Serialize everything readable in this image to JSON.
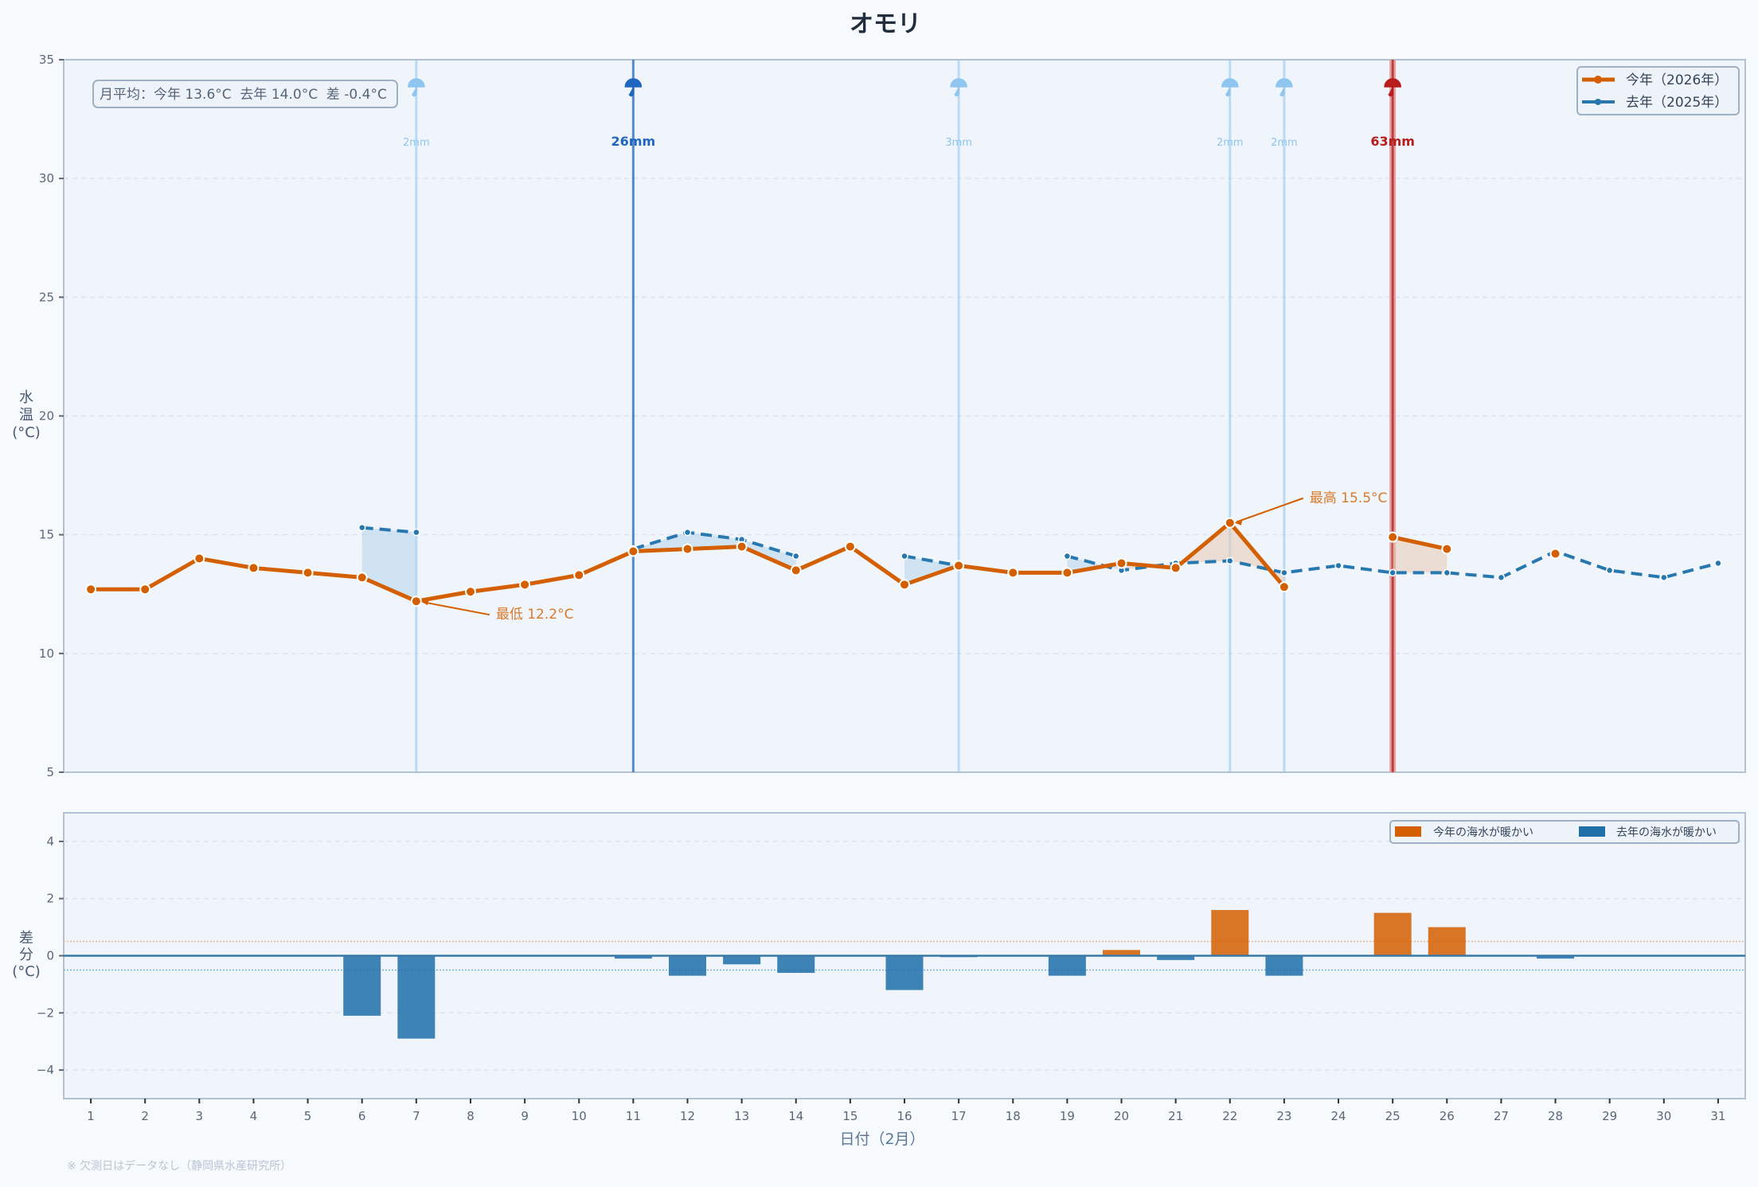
{
  "chart_data": [
    {
      "type": "line",
      "title": "オモリ",
      "ylabel": [
        "水",
        "温",
        "(°C)"
      ],
      "ylim": [
        5,
        35
      ],
      "yticks": [
        5,
        10,
        15,
        20,
        25,
        30,
        35
      ],
      "xlim": [
        0.5,
        31.5
      ],
      "x": [
        1,
        2,
        3,
        4,
        5,
        6,
        7,
        8,
        9,
        10,
        11,
        12,
        13,
        14,
        15,
        16,
        17,
        18,
        19,
        20,
        21,
        22,
        23,
        24,
        25,
        26,
        27,
        28,
        29,
        30,
        31
      ],
      "grid": true,
      "legend_placement": "top-right",
      "series": [
        {
          "name": "今年（2026年）",
          "color": "#d35f00",
          "style": "solid",
          "values": [
            12.7,
            12.7,
            14.0,
            13.6,
            13.4,
            13.2,
            12.2,
            12.6,
            12.9,
            13.3,
            14.3,
            14.4,
            14.5,
            13.5,
            14.5,
            12.9,
            13.7,
            13.4,
            13.4,
            13.8,
            13.6,
            15.5,
            12.8,
            null,
            14.9,
            14.4,
            null,
            14.2,
            null,
            null,
            null
          ]
        },
        {
          "name": "去年（2025年）",
          "color": "#2878b0",
          "style": "dashed",
          "values": [
            null,
            null,
            null,
            null,
            null,
            15.3,
            15.1,
            null,
            null,
            null,
            14.4,
            15.1,
            14.8,
            14.1,
            null,
            14.1,
            13.7,
            null,
            14.1,
            13.5,
            13.8,
            13.9,
            13.4,
            13.7,
            13.4,
            13.4,
            13.2,
            14.3,
            13.5,
            13.2,
            13.8
          ]
        }
      ],
      "rain": [
        {
          "day": 7,
          "label": "2mm",
          "level": "light"
        },
        {
          "day": 11,
          "label": "26mm",
          "level": "medium"
        },
        {
          "day": 17,
          "label": "3mm",
          "level": "light"
        },
        {
          "day": 22,
          "label": "2mm",
          "level": "light"
        },
        {
          "day": 23,
          "label": "2mm",
          "level": "light"
        },
        {
          "day": 25,
          "label": "63mm",
          "level": "heavy"
        }
      ],
      "rain_colors": {
        "light": "#8ec6f0",
        "medium": "#1f66c0",
        "heavy": "#b81c1c"
      },
      "annotations": [
        {
          "day": 7,
          "value": 12.2,
          "text": "最低 12.2°C"
        },
        {
          "day": 22,
          "value": 15.5,
          "text": "最高 15.5°C"
        }
      ],
      "summary": "月平均：今年 13.6°C  去年 14.0°C  差 -0.4°C"
    },
    {
      "type": "bar",
      "ylabel": [
        "差",
        "分",
        "(°C)"
      ],
      "ylim": [
        -5,
        5
      ],
      "yticks": [
        -4,
        -2,
        0,
        2,
        4
      ],
      "ytick_labels": [
        "−4",
        "−2",
        "0",
        "2",
        "4"
      ],
      "xlabel": "日付（2月）",
      "categories": [
        1,
        2,
        3,
        4,
        5,
        6,
        7,
        8,
        9,
        10,
        11,
        12,
        13,
        14,
        15,
        16,
        17,
        18,
        19,
        20,
        21,
        22,
        23,
        24,
        25,
        26,
        27,
        28,
        29,
        30,
        31
      ],
      "values": [
        null,
        null,
        null,
        null,
        null,
        -2.1,
        -2.9,
        null,
        null,
        null,
        -0.1,
        -0.7,
        -0.3,
        -0.6,
        null,
        -1.2,
        -0.05,
        null,
        -0.7,
        0.2,
        -0.15,
        1.6,
        -0.7,
        null,
        1.5,
        1.0,
        null,
        -0.1,
        null,
        null,
        null
      ],
      "threshold_lines": [
        0.5,
        -0.5
      ],
      "legend_placement": "top-right",
      "legend": [
        {
          "label": "今年の海水が暖かい",
          "color": "#d35f00"
        },
        {
          "label": "去年の海水が暖かい",
          "color": "#1f6fa8"
        }
      ]
    }
  ],
  "footnote": "※ 欠測日はデータなし（静岡県水産研究所）"
}
